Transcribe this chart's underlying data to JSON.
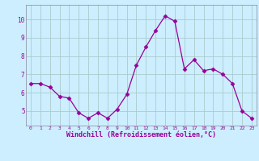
{
  "x": [
    0,
    1,
    2,
    3,
    4,
    5,
    6,
    7,
    8,
    9,
    10,
    11,
    12,
    13,
    14,
    15,
    16,
    17,
    18,
    19,
    20,
    21,
    22,
    23
  ],
  "y": [
    6.5,
    6.5,
    6.3,
    5.8,
    5.7,
    4.9,
    4.6,
    4.9,
    4.6,
    5.1,
    5.9,
    7.5,
    8.5,
    9.4,
    10.2,
    9.9,
    7.3,
    7.8,
    7.2,
    7.3,
    7.0,
    6.5,
    5.0,
    4.6
  ],
  "line_color": "#990099",
  "marker": "D",
  "marker_size": 2.5,
  "bg_color": "#cceeff",
  "grid_color": "#aacccc",
  "xlabel": "Windchill (Refroidissement éolien,°C)",
  "xlabel_color": "#990099",
  "tick_color": "#990099",
  "ylim": [
    4.2,
    10.8
  ],
  "yticks": [
    5,
    6,
    7,
    8,
    9,
    10
  ],
  "spine_color": "#888899"
}
